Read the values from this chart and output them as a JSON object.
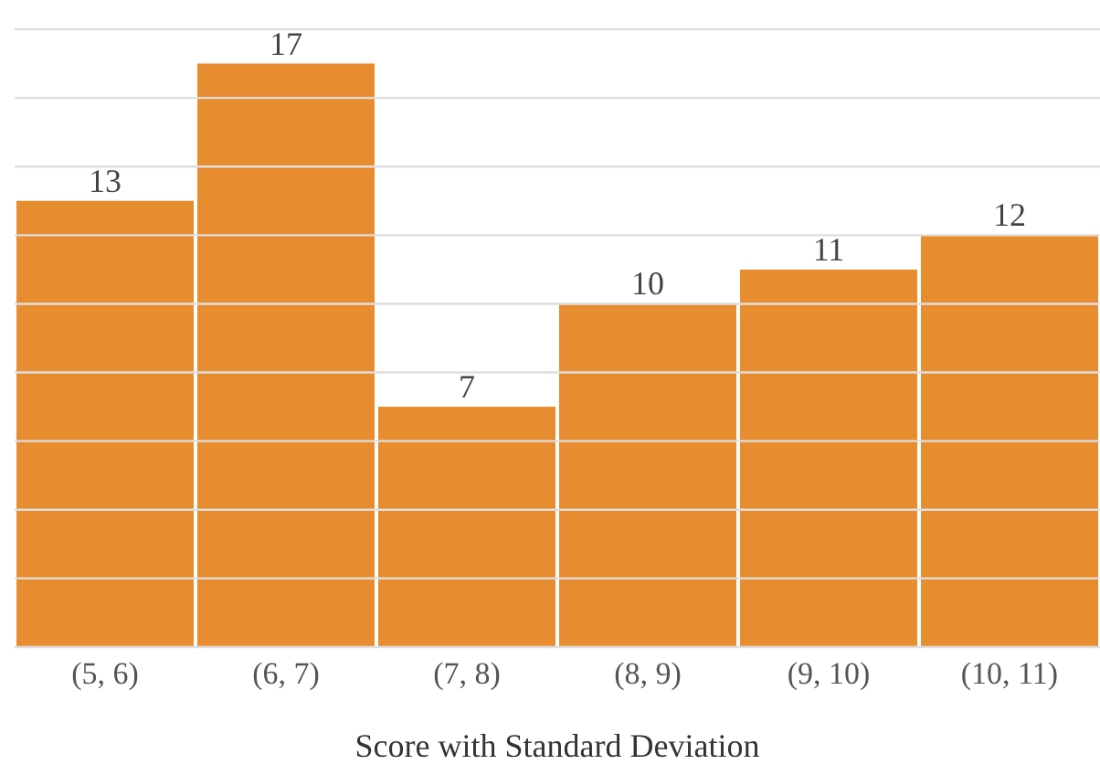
{
  "chart_data": {
    "type": "bar",
    "xlabel": "Score with Standard Deviation",
    "categories": [
      "(5, 6)",
      "(6, 7)",
      "(7, 8)",
      "(8, 9)",
      "(9, 10)",
      "(10, 11)"
    ],
    "values": [
      13,
      17,
      7,
      10,
      11,
      12
    ],
    "color": "#e88c30",
    "ylim": [
      0,
      18
    ],
    "yticks": [
      {
        "value": 0,
        "label": null
      },
      {
        "value": 2,
        "label": null
      },
      {
        "value": 4,
        "label": null
      },
      {
        "value": 6,
        "label": null
      },
      {
        "value": 8,
        "label": null
      },
      {
        "value": 10,
        "label": null
      },
      {
        "value": 12,
        "label": null
      },
      {
        "value": 14,
        "label": null
      },
      {
        "value": 16,
        "label": null
      },
      {
        "value": 18,
        "label": null
      }
    ],
    "grid": "y",
    "tick_labels": "x",
    "data_labels": true
  }
}
